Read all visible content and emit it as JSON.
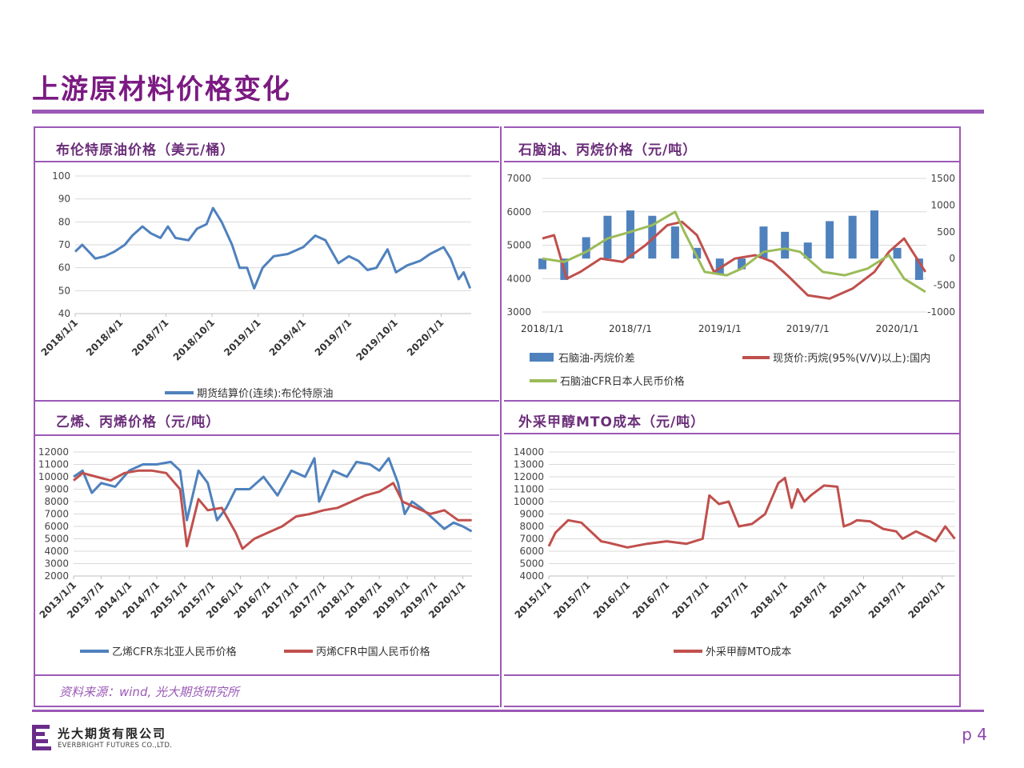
{
  "page": {
    "title": "上游原材料价格变化",
    "source": "资料来源：wind, 光大期货研究所",
    "page_number": "p 4"
  },
  "logo": {
    "cn": "光大期货有限公司",
    "en": "EVERBRIGHT FUTURES CO.,LTD."
  },
  "colors": {
    "accent": "#9b59b6",
    "title": "#7b1a82",
    "blue": "#4f81bd",
    "red": "#c0504d",
    "green": "#9bbb59"
  },
  "chart_data": [
    {
      "type": "line",
      "title": "布伦特原油价格（美元/桶）",
      "y_ticks": [
        "100",
        "90",
        "80",
        "70",
        "60",
        "50",
        "40"
      ],
      "x_ticks": [
        "2018/1/1",
        "2018/4/1",
        "2018/7/1",
        "2018/10/1",
        "2019/1/1",
        "2019/4/1",
        "2019/7/1",
        "2019/10/1",
        "2020/1/1"
      ],
      "ylim": [
        40,
        100
      ],
      "series": [
        {
          "name": "期货结算价(连续):布伦特原油",
          "color": "#4f81bd",
          "x": [
            "2018-01-01",
            "2018-01-15",
            "2018-02-10",
            "2018-03-01",
            "2018-03-20",
            "2018-04-10",
            "2018-04-25",
            "2018-05-15",
            "2018-06-01",
            "2018-06-20",
            "2018-07-05",
            "2018-07-20",
            "2018-08-15",
            "2018-09-01",
            "2018-09-20",
            "2018-10-03",
            "2018-10-20",
            "2018-11-10",
            "2018-11-25",
            "2018-12-10",
            "2018-12-24",
            "2019-01-10",
            "2019-02-01",
            "2019-03-01",
            "2019-04-01",
            "2019-04-25",
            "2019-05-15",
            "2019-06-10",
            "2019-07-01",
            "2019-07-20",
            "2019-08-07",
            "2019-08-25",
            "2019-09-16",
            "2019-10-03",
            "2019-10-25",
            "2019-11-20",
            "2019-12-10",
            "2020-01-06",
            "2020-01-20",
            "2020-02-05",
            "2020-02-15",
            "2020-02-28"
          ],
          "values": [
            67,
            70,
            64,
            65,
            67,
            70,
            74,
            78,
            75,
            73,
            78,
            73,
            72,
            77,
            79,
            86,
            80,
            70,
            60,
            60,
            51,
            60,
            65,
            66,
            69,
            74,
            72,
            62,
            65,
            63,
            59,
            60,
            68,
            58,
            61,
            63,
            66,
            69,
            64,
            55,
            58,
            51
          ]
        }
      ]
    },
    {
      "type": "bar+line",
      "title": "石脑油、丙烷价格（元/吨）",
      "y_ticks_left": [
        "7000",
        "6000",
        "5000",
        "4000",
        "3000"
      ],
      "y_ticks_right": [
        "1500",
        "1000",
        "500",
        "0",
        "-500",
        "-1000"
      ],
      "x_ticks": [
        "2018/1/1",
        "2018/7/1",
        "2019/1/1",
        "2019/7/1",
        "2020/1/1"
      ],
      "ylim_left": [
        3000,
        7000
      ],
      "ylim_right": [
        -1000,
        1500
      ],
      "series": [
        {
          "name": "石脑油-丙烷价差",
          "color": "#4f81bd",
          "axis": "right",
          "x": [
            "2018-01-01",
            "2018-02-15",
            "2018-04-01",
            "2018-05-15",
            "2018-07-01",
            "2018-08-15",
            "2018-10-01",
            "2018-11-15",
            "2019-01-01",
            "2019-02-15",
            "2019-04-01",
            "2019-05-15",
            "2019-07-01",
            "2019-08-15",
            "2019-10-01",
            "2019-11-15",
            "2020-01-01",
            "2020-02-15"
          ],
          "values": [
            -200,
            -400,
            400,
            800,
            900,
            800,
            600,
            200,
            -300,
            -200,
            600,
            500,
            300,
            700,
            800,
            900,
            200,
            -400
          ]
        },
        {
          "name": "现货价:丙烷(95%(V/V)以上):国内",
          "color": "#c0504d",
          "axis": "left",
          "x": [
            "2018-01-01",
            "2018-01-25",
            "2018-02-20",
            "2018-03-20",
            "2018-05-01",
            "2018-06-15",
            "2018-08-01",
            "2018-09-15",
            "2018-10-15",
            "2018-11-15",
            "2018-12-20",
            "2019-02-01",
            "2019-03-15",
            "2019-04-20",
            "2019-05-20",
            "2019-07-01",
            "2019-08-15",
            "2019-10-01",
            "2019-11-15",
            "2019-12-15",
            "2020-01-15",
            "2020-02-28"
          ],
          "values": [
            5200,
            5300,
            4000,
            4200,
            4600,
            4500,
            5000,
            5600,
            5700,
            5300,
            4200,
            4600,
            4700,
            4500,
            4100,
            3500,
            3400,
            3700,
            4200,
            4800,
            5200,
            4200
          ]
        },
        {
          "name": "石脑油CFR日本人民币价格",
          "color": "#9bbb59",
          "axis": "left",
          "x": [
            "2018-01-01",
            "2018-02-15",
            "2018-04-01",
            "2018-05-15",
            "2018-07-01",
            "2018-08-15",
            "2018-10-01",
            "2018-10-20",
            "2018-12-01",
            "2019-01-15",
            "2019-02-15",
            "2019-04-01",
            "2019-05-15",
            "2019-06-15",
            "2019-08-01",
            "2019-09-15",
            "2019-11-01",
            "2019-12-15",
            "2020-01-15",
            "2020-02-28"
          ],
          "values": [
            4600,
            4500,
            4800,
            5200,
            5400,
            5600,
            6000,
            5400,
            4200,
            4100,
            4300,
            4800,
            4900,
            4800,
            4200,
            4100,
            4300,
            4700,
            4000,
            3600
          ]
        }
      ]
    },
    {
      "type": "line",
      "title": "乙烯、丙烯价格（元/吨）",
      "y_ticks": [
        "12000",
        "11000",
        "10000",
        "9000",
        "8000",
        "7000",
        "6000",
        "5000",
        "4000",
        "3000",
        "2000"
      ],
      "x_ticks": [
        "2013/1/1",
        "2013/7/1",
        "2014/1/1",
        "2014/7/1",
        "2015/1/1",
        "2015/7/1",
        "2016/1/1",
        "2016/7/1",
        "2017/1/1",
        "2017/7/1",
        "2018/1/1",
        "2018/7/1",
        "2019/1/1",
        "2019/7/1",
        "2020/1/1"
      ],
      "ylim": [
        2000,
        12000
      ],
      "series": [
        {
          "name": "乙烯CFR东北亚人民币价格",
          "color": "#4f81bd",
          "x": [
            "2013-01-01",
            "2013-03-01",
            "2013-05-01",
            "2013-07-01",
            "2013-10-01",
            "2014-01-01",
            "2014-04-01",
            "2014-07-01",
            "2014-10-01",
            "2014-12-01",
            "2015-01-15",
            "2015-04-01",
            "2015-06-01",
            "2015-08-01",
            "2015-10-01",
            "2015-12-01",
            "2016-03-01",
            "2016-06-01",
            "2016-09-01",
            "2016-12-01",
            "2017-03-01",
            "2017-05-01",
            "2017-06-01",
            "2017-09-01",
            "2017-12-01",
            "2018-02-01",
            "2018-05-01",
            "2018-07-01",
            "2018-09-01",
            "2018-11-01",
            "2018-12-15",
            "2019-02-01",
            "2019-04-01",
            "2019-07-01",
            "2019-09-01",
            "2019-11-01",
            "2020-01-01",
            "2020-02-28"
          ],
          "values": [
            10000,
            10500,
            8700,
            9500,
            9200,
            10500,
            11000,
            11000,
            11200,
            10500,
            6500,
            10500,
            9500,
            6500,
            7500,
            9000,
            9000,
            10000,
            8500,
            10500,
            10000,
            11500,
            8000,
            10500,
            10000,
            11200,
            11000,
            10500,
            11500,
            9500,
            7000,
            8000,
            7500,
            6500,
            5800,
            6300,
            6000,
            5600
          ]
        },
        {
          "name": "丙烯CFR中国人民币价格",
          "color": "#c0504d",
          "x": [
            "2013-01-01",
            "2013-03-01",
            "2013-06-01",
            "2013-09-01",
            "2013-12-01",
            "2014-03-01",
            "2014-06-01",
            "2014-09-01",
            "2014-12-01",
            "2015-01-15",
            "2015-04-01",
            "2015-06-01",
            "2015-09-01",
            "2015-12-01",
            "2016-01-15",
            "2016-04-01",
            "2016-07-01",
            "2016-10-01",
            "2017-01-01",
            "2017-04-01",
            "2017-07-01",
            "2017-10-01",
            "2018-01-01",
            "2018-04-01",
            "2018-07-01",
            "2018-10-01",
            "2018-12-01",
            "2019-03-01",
            "2019-06-01",
            "2019-09-01",
            "2019-12-01",
            "2020-02-28"
          ],
          "values": [
            9700,
            10300,
            10000,
            9700,
            10300,
            10500,
            10500,
            10300,
            9000,
            4400,
            8200,
            7300,
            7500,
            5500,
            4200,
            5000,
            5500,
            6000,
            6800,
            7000,
            7300,
            7500,
            8000,
            8500,
            8800,
            9500,
            8000,
            7500,
            7000,
            7300,
            6500,
            6500
          ]
        }
      ]
    },
    {
      "type": "line",
      "title": "外采甲醇MTO成本（元/吨）",
      "y_ticks": [
        "14000",
        "13000",
        "12000",
        "11000",
        "10000",
        "9000",
        "8000",
        "7000",
        "6000",
        "5000",
        "4000"
      ],
      "x_ticks": [
        "2015/1/1",
        "2015/7/1",
        "2016/1/1",
        "2016/7/1",
        "2017/1/1",
        "2017/7/1",
        "2018/1/1",
        "2018/7/1",
        "2019/1/1",
        "2019/7/1",
        "2020/1/1"
      ],
      "ylim": [
        4000,
        14000
      ],
      "series": [
        {
          "name": "外采甲醇MTO成本",
          "color": "#c0504d",
          "x": [
            "2015-01-01",
            "2015-02-01",
            "2015-04-01",
            "2015-06-01",
            "2015-09-01",
            "2015-10-01",
            "2016-01-01",
            "2016-04-01",
            "2016-07-01",
            "2016-10-01",
            "2016-12-15",
            "2017-01-15",
            "2017-03-01",
            "2017-04-15",
            "2017-06-01",
            "2017-08-01",
            "2017-10-01",
            "2017-12-01",
            "2018-01-01",
            "2018-02-01",
            "2018-03-01",
            "2018-04-01",
            "2018-05-01",
            "2018-07-01",
            "2018-09-01",
            "2018-10-01",
            "2018-11-01",
            "2018-12-01",
            "2019-02-01",
            "2019-04-01",
            "2019-06-01",
            "2019-07-01",
            "2019-09-01",
            "2019-11-01",
            "2019-12-01",
            "2020-01-15",
            "2020-02-28"
          ],
          "values": [
            6400,
            7500,
            8500,
            8300,
            6800,
            6700,
            6300,
            6600,
            6800,
            6600,
            7000,
            10500,
            9800,
            10000,
            8000,
            8200,
            9000,
            11500,
            11900,
            9500,
            11000,
            10000,
            10500,
            11300,
            11200,
            8000,
            8200,
            8500,
            8400,
            7800,
            7600,
            7000,
            7600,
            7100,
            6800,
            8000,
            7000
          ]
        }
      ]
    }
  ]
}
